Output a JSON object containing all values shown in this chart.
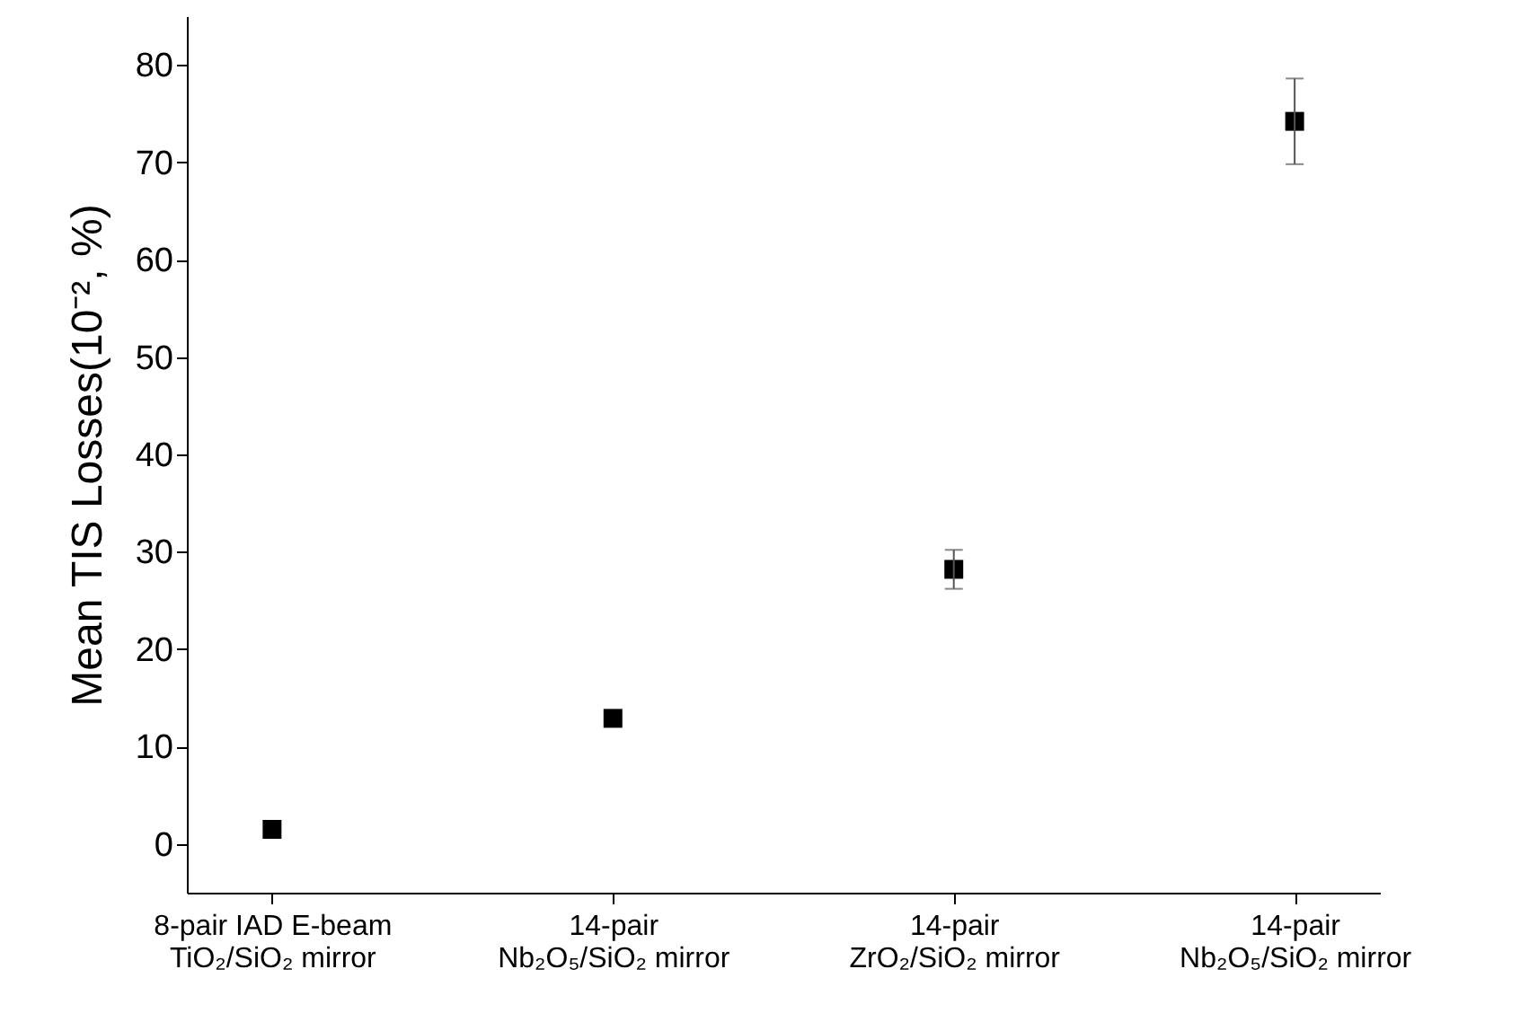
{
  "chart_data": {
    "type": "scatter",
    "ylabel": "Mean TIS Losses(10⁻², %)",
    "categories": [
      "8-pair IAD E-beam\nTiO₂/SiO₂ mirror",
      "14-pair\nNb₂O₅/SiO₂ mirror",
      "14-pair\nZrO₂/SiO₂ mirror",
      "14-pair\nNb₂O₅/SiO₂ mirror"
    ],
    "series": [
      {
        "color": "#000000",
        "values": [
          1.5,
          12.9,
          28.2,
          74.2
        ],
        "errors": [
          null,
          null,
          2,
          4.4
        ]
      }
    ],
    "marker": "square",
    "ylim": [
      -5,
      85
    ],
    "yticks": [
      0,
      10,
      20,
      30,
      40,
      50,
      60,
      70,
      80
    ],
    "grid": false
  }
}
